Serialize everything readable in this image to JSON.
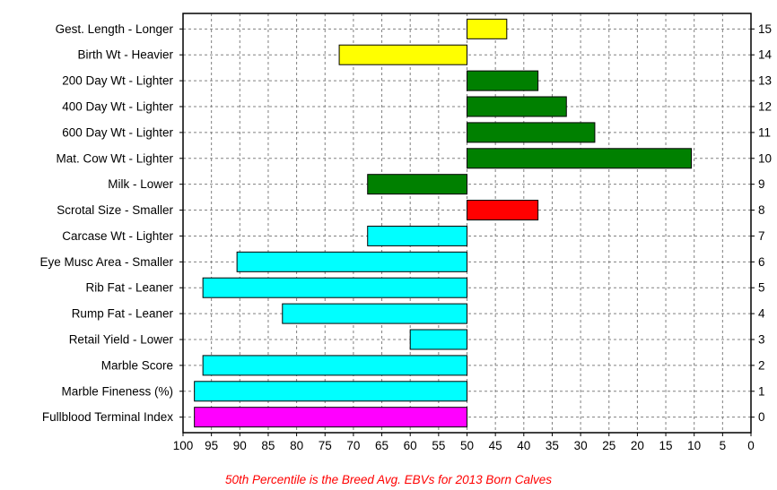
{
  "chart_data": {
    "type": "bar",
    "orientation": "horizontal",
    "title": "",
    "xlabel": "",
    "caption": "50th Percentile is the Breed Avg. EBVs for 2013 Born Calves",
    "xlim": [
      100,
      0
    ],
    "x_reversed": true,
    "baseline": 50,
    "grid": true,
    "x_ticks": [
      100,
      95,
      90,
      85,
      80,
      75,
      70,
      65,
      60,
      55,
      50,
      45,
      40,
      35,
      30,
      25,
      20,
      15,
      10,
      5,
      0
    ],
    "categories": [
      "Gest. Length - Longer",
      "Birth Wt - Heavier",
      "200 Day Wt - Lighter",
      "400 Day Wt - Lighter",
      "600 Day Wt - Lighter",
      "Mat. Cow Wt - Lighter",
      "Milk - Lower",
      "Scrotal Size - Smaller",
      "Carcase Wt - Lighter",
      "Eye Musc Area - Smaller",
      "Rib Fat - Leaner",
      "Rump Fat - Leaner",
      "Retail Yield - Lower",
      "Marble Score",
      "Marble Fineness (%)",
      "Fullblood Terminal Index"
    ],
    "right_labels": [
      "15",
      "14",
      "13",
      "12",
      "11",
      "10",
      "9",
      "8",
      "7",
      "6",
      "5",
      "4",
      "3",
      "2",
      "1",
      "0"
    ],
    "values": [
      43,
      72.5,
      37.5,
      32.5,
      27.5,
      10.5,
      67.5,
      37.5,
      67.5,
      90.5,
      96.5,
      82.5,
      60,
      96.5,
      98,
      98
    ],
    "colors": [
      "#ffff00",
      "#ffff00",
      "#008000",
      "#008000",
      "#008000",
      "#008000",
      "#008000",
      "#ff0000",
      "#00ffff",
      "#00ffff",
      "#00ffff",
      "#00ffff",
      "#00ffff",
      "#00ffff",
      "#00ffff",
      "#ff00ff"
    ]
  },
  "colors": {
    "caption": "#ff0000",
    "grid": "#808080"
  }
}
